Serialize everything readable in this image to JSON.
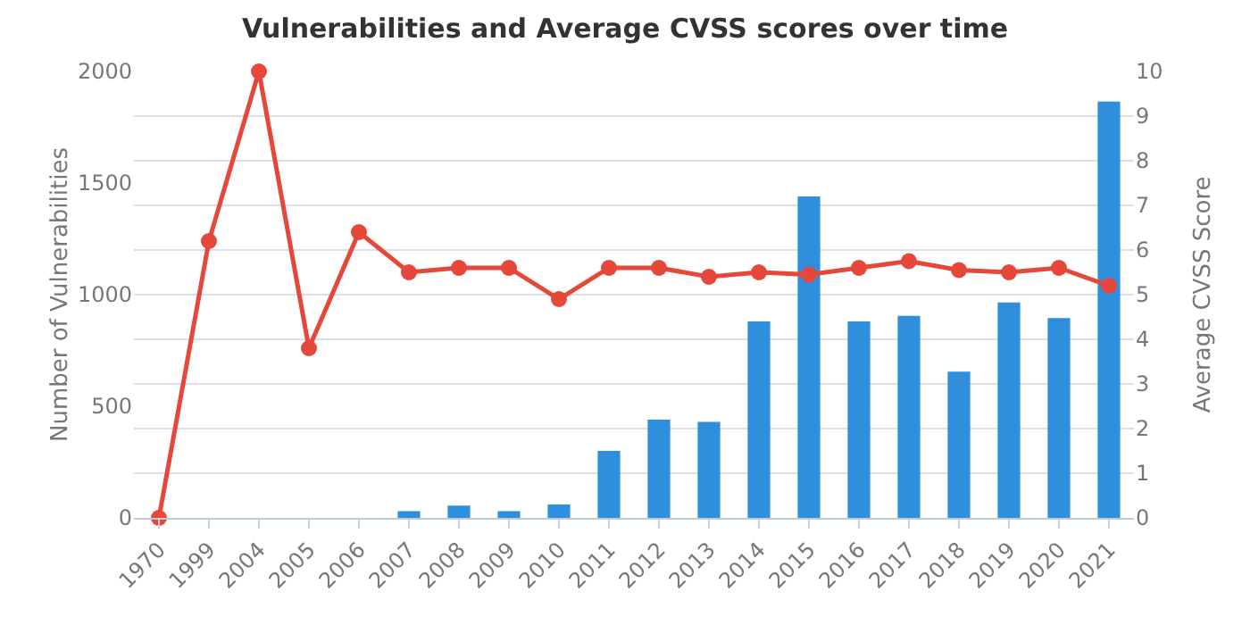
{
  "chart_data": {
    "type": "bar",
    "title": "Vulnerabilities and Average CVSS scores over time",
    "ylabel": "Number of Vulnerabilities",
    "y2label": "Average CVSS Score",
    "categories": [
      "1970",
      "1999",
      "2004",
      "2005",
      "2006",
      "2007",
      "2008",
      "2009",
      "2010",
      "2011",
      "2012",
      "2013",
      "2014",
      "2015",
      "2016",
      "2017",
      "2018",
      "2019",
      "2020",
      "2021"
    ],
    "series": [
      {
        "color": "#2f8fdc",
        "values": [
          0,
          0,
          0,
          0,
          0,
          30,
          55,
          30,
          60,
          300,
          440,
          430,
          880,
          1440,
          880,
          905,
          655,
          965,
          895,
          1865
        ]
      },
      {
        "type": "line",
        "axis": "y2",
        "color": "#e5473a",
        "marker": "circle",
        "values": [
          0,
          6.2,
          10,
          3.8,
          6.4,
          5.5,
          5.6,
          5.6,
          4.9,
          5.6,
          5.6,
          5.4,
          5.5,
          5.45,
          5.6,
          5.75,
          5.55,
          5.5,
          5.6,
          5.2
        ]
      }
    ],
    "ylim": [
      0,
      2000
    ],
    "yticks": [
      0,
      500,
      1000,
      1500,
      2000
    ],
    "y2lim": [
      0,
      10
    ],
    "y2ticks": [
      0,
      1,
      2,
      3,
      4,
      5,
      6,
      7,
      8,
      9,
      10
    ],
    "grid": true,
    "legend": false
  }
}
